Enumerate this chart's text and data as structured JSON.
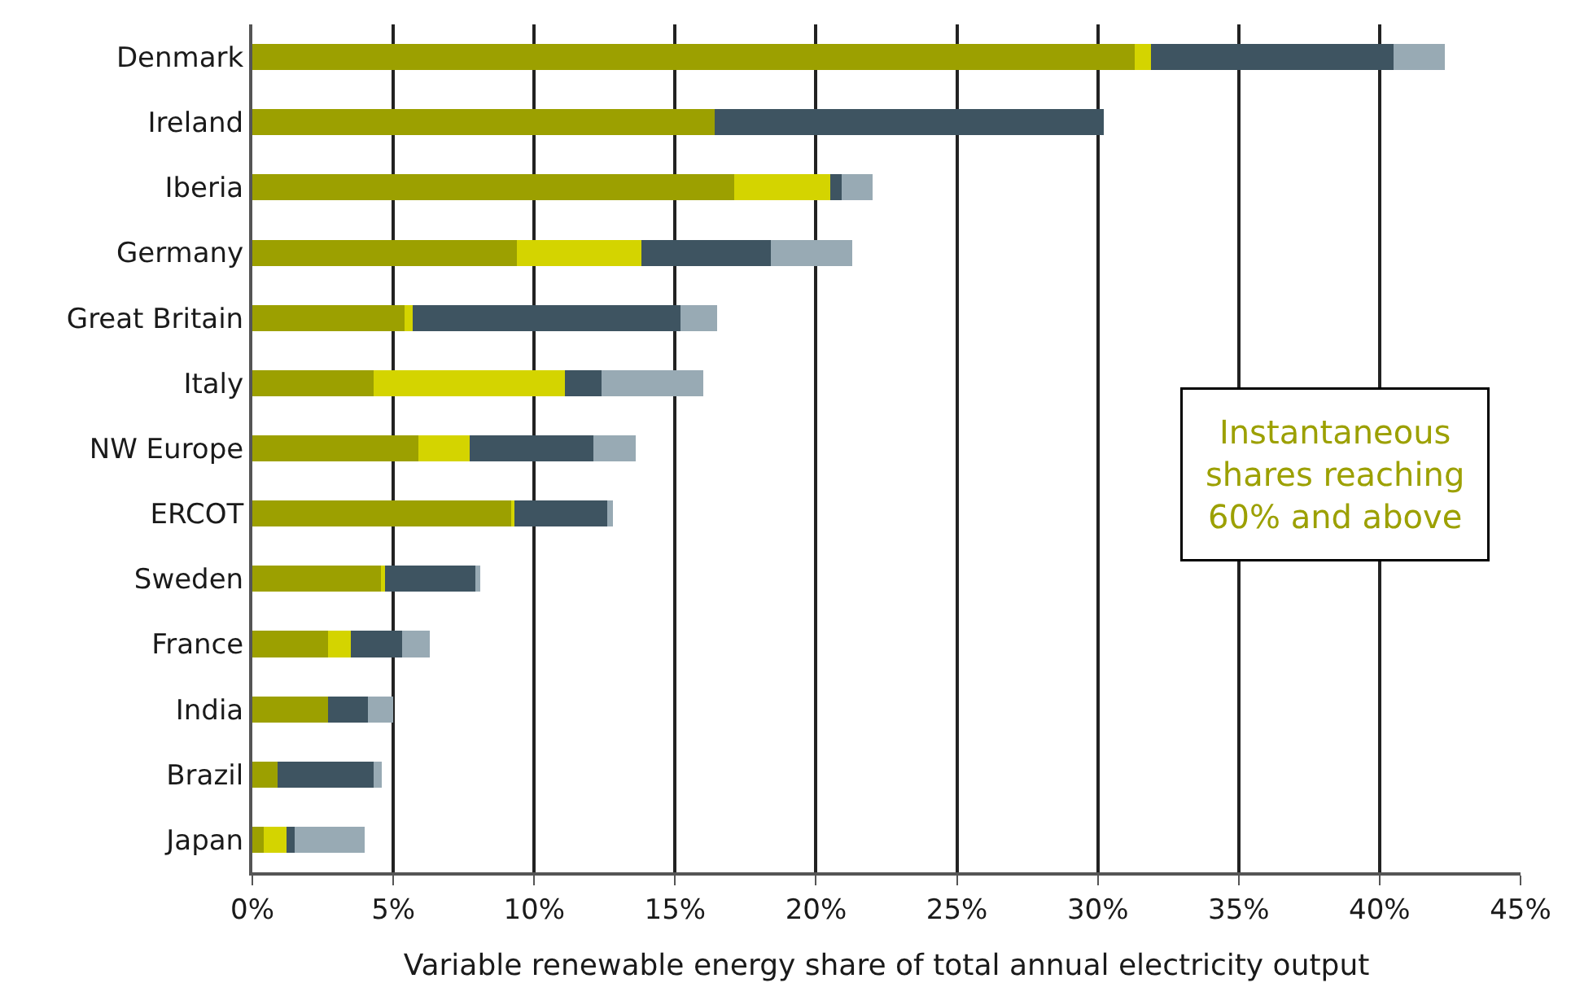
{
  "chart_data": {
    "type": "bar",
    "orientation": "horizontal",
    "stacked": true,
    "xlabel": "Variable renewable energy share of total annual electricity output",
    "categories": [
      "Denmark",
      "Ireland",
      "Iberia",
      "Germany",
      "Great Britain",
      "Italy",
      "NW Europe",
      "ERCOT",
      "Sweden",
      "France",
      "India",
      "Brazil",
      "Japan"
    ],
    "series": [
      {
        "color": "#9ca000",
        "values": [
          31.3,
          16.4,
          17.1,
          9.4,
          5.4,
          4.3,
          5.9,
          9.2,
          4.6,
          2.7,
          2.7,
          0.9,
          0.4
        ]
      },
      {
        "color": "#d4d400",
        "values": [
          0.6,
          0,
          3.4,
          4.4,
          0.3,
          6.8,
          1.8,
          0.1,
          0.1,
          0.8,
          0,
          0,
          0.8
        ]
      },
      {
        "color": "#3e5461",
        "values": [
          8.6,
          13.8,
          0.4,
          4.6,
          9.5,
          1.3,
          4.4,
          3.3,
          3.2,
          1.8,
          1.4,
          3.4,
          0.3
        ]
      },
      {
        "color": "#98aab4",
        "values": [
          1.8,
          0,
          1.1,
          2.9,
          1.3,
          3.6,
          1.5,
          0.2,
          0.2,
          1.0,
          0.9,
          0.3,
          2.5
        ]
      }
    ],
    "xlim": [
      0,
      45
    ],
    "xticks": [
      {
        "value": 0,
        "label": "0%"
      },
      {
        "value": 5,
        "label": "5%"
      },
      {
        "value": 10,
        "label": "10%"
      },
      {
        "value": 15,
        "label": "15%"
      },
      {
        "value": 20,
        "label": "20%"
      },
      {
        "value": 25,
        "label": "25%"
      },
      {
        "value": 30,
        "label": "30%"
      },
      {
        "value": 35,
        "label": "35%"
      },
      {
        "value": 40,
        "label": "40%"
      },
      {
        "value": 45,
        "label": "45%"
      }
    ],
    "grid": "x",
    "legend": false,
    "annotations": [
      "Instantaneous\nshares reaching\n60% and above"
    ]
  }
}
